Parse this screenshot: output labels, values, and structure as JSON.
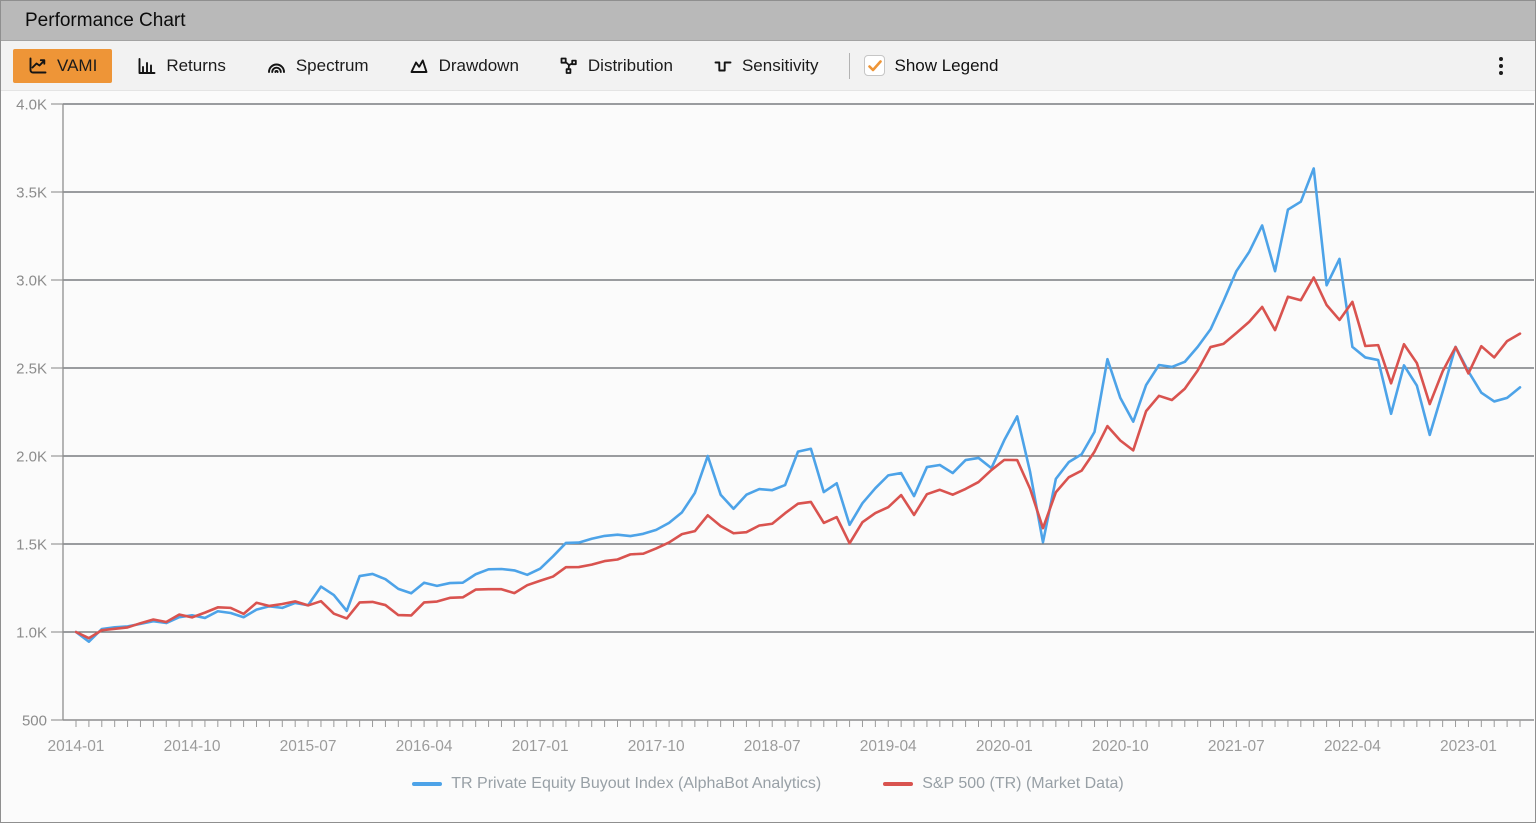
{
  "window": {
    "title": "Performance Chart"
  },
  "toolbar": {
    "active_tab_color": "#ee9537",
    "tabs": [
      {
        "label": "VAMI",
        "icon": "line-chart-icon",
        "active": true
      },
      {
        "label": "Returns",
        "icon": "bar-chart-icon",
        "active": false
      },
      {
        "label": "Spectrum",
        "icon": "spectrum-arcs-icon",
        "active": false
      },
      {
        "label": "Drawdown",
        "icon": "area-chart-icon",
        "active": false
      },
      {
        "label": "Distribution",
        "icon": "node-graph-icon",
        "active": false
      },
      {
        "label": "Sensitivity",
        "icon": "square-wave-icon",
        "active": false
      }
    ],
    "show_legend": {
      "label": "Show Legend",
      "checked": true,
      "check_color": "#ee9537"
    },
    "menu_icon": "kebab-menu-icon"
  },
  "chart_data": {
    "type": "line",
    "x_unit": "month",
    "x_start": "2014-01",
    "x_end": "2023-05",
    "grid": true,
    "legend_position": "bottom",
    "ylim": [
      500,
      4000
    ],
    "ytick_labels": [
      "4.0K",
      "3.5K",
      "3.0K",
      "2.5K",
      "2.0K",
      "1.5K",
      "1.0K",
      "500"
    ],
    "ytick_values": [
      4000,
      3500,
      3000,
      2500,
      2000,
      1500,
      1000,
      500
    ],
    "xtick_labels": [
      "2014-01",
      "2014-10",
      "2015-07",
      "2016-04",
      "2017-01",
      "2017-10",
      "2018-07",
      "2019-04",
      "2020-01",
      "2020-10",
      "2021-07",
      "2022-04",
      "2023-01"
    ],
    "xtick_month_indices": [
      0,
      9,
      18,
      27,
      36,
      45,
      54,
      63,
      72,
      81,
      90,
      99,
      108
    ],
    "series": [
      {
        "name": "TR Private Equity Buyout Index (AlphaBot Analytics)",
        "color": "#4da3e8",
        "values": [
          1000,
          945,
          1017,
          1027,
          1032,
          1046,
          1061,
          1051,
          1084,
          1095,
          1080,
          1118,
          1108,
          1084,
          1127,
          1146,
          1137,
          1165,
          1152,
          1258,
          1210,
          1120,
          1318,
          1330,
          1300,
          1245,
          1220,
          1280,
          1262,
          1278,
          1280,
          1328,
          1356,
          1358,
          1350,
          1325,
          1360,
          1430,
          1506,
          1508,
          1530,
          1546,
          1553,
          1545,
          1558,
          1580,
          1620,
          1680,
          1790,
          2000,
          1780,
          1700,
          1780,
          1812,
          1806,
          1835,
          2025,
          2041,
          1795,
          1845,
          1609,
          1732,
          1817,
          1890,
          1903,
          1772,
          1937,
          1949,
          1903,
          1977,
          1989,
          1931,
          2090,
          2225,
          1910,
          1510,
          1870,
          1965,
          2010,
          2137,
          2550,
          2330,
          2195,
          2403,
          2517,
          2506,
          2535,
          2620,
          2720,
          2880,
          3050,
          3160,
          3310,
          3050,
          3400,
          3445,
          3634,
          2970,
          3120,
          2620,
          2560,
          2545,
          2240,
          2515,
          2400,
          2120,
          2365,
          2620,
          2480,
          2360,
          2310,
          2330,
          2390
        ]
      },
      {
        "name": "S&P 500 (TR) (Market Data)",
        "color": "#d9534f",
        "values": [
          1000,
          965,
          1010,
          1018,
          1026,
          1050,
          1071,
          1057,
          1099,
          1083,
          1110,
          1140,
          1137,
          1103,
          1166,
          1148,
          1159,
          1174,
          1151,
          1175,
          1104,
          1077,
          1168,
          1171,
          1153,
          1096,
          1094,
          1168,
          1173,
          1194,
          1197,
          1241,
          1243,
          1243,
          1221,
          1266,
          1291,
          1315,
          1368,
          1369,
          1383,
          1403,
          1412,
          1441,
          1445,
          1475,
          1509,
          1556,
          1573,
          1663,
          1602,
          1561,
          1567,
          1605,
          1615,
          1675,
          1729,
          1739,
          1620,
          1653,
          1504,
          1624,
          1676,
          1709,
          1778,
          1665,
          1783,
          1808,
          1780,
          1813,
          1852,
          1920,
          1978,
          1977,
          1814,
          1590,
          1794,
          1879,
          1917,
          2025,
          2170,
          2088,
          2032,
          2255,
          2342,
          2318,
          2382,
          2486,
          2619,
          2637,
          2699,
          2763,
          2847,
          2715,
          2905,
          2885,
          3014,
          2858,
          2773,
          2876,
          2625,
          2630,
          2413,
          2635,
          2528,
          2295,
          2481,
          2619,
          2469,
          2624,
          2560,
          2653,
          2695
        ]
      }
    ]
  }
}
